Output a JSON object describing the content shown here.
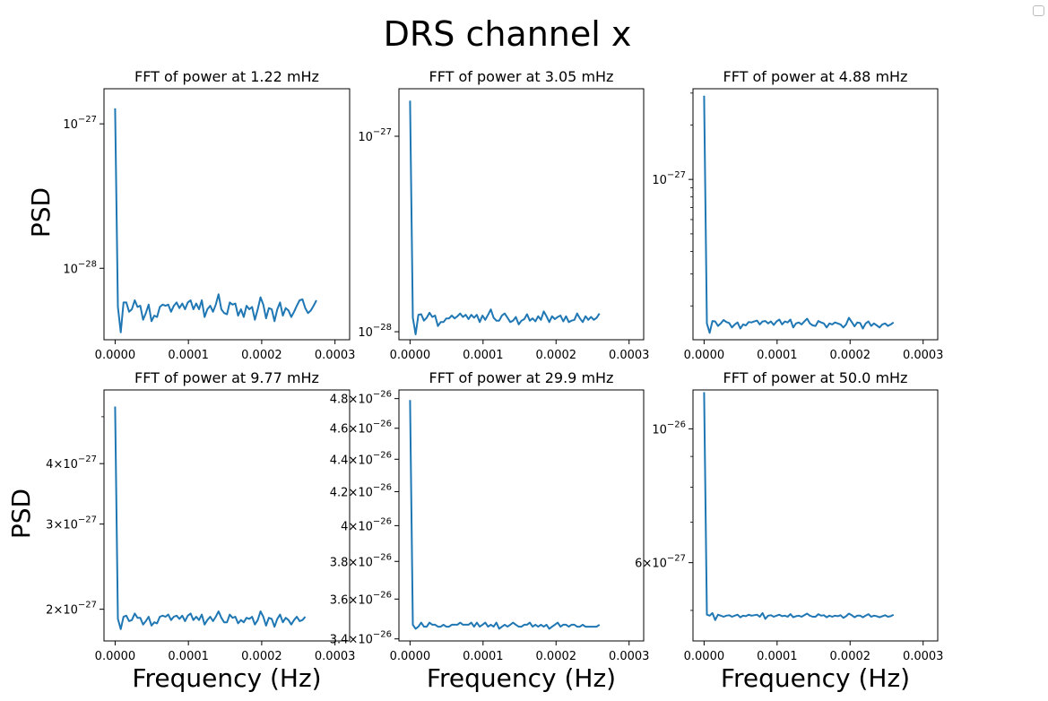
{
  "figure_title": "DRS channel x",
  "line_color": "#1f77b4",
  "chart_data": [
    {
      "type": "line",
      "title": "FFT of power at 1.22 mHz",
      "xlabel": "",
      "ylabel": "PSD",
      "xscale": "linear",
      "yscale": "log",
      "xlim": [
        -1.52e-05,
        0.00032
      ],
      "ylim": [
        3.2e-29,
        1.75e-27
      ],
      "xticks": [
        "0.0000",
        "0.0001",
        "0.0002",
        "0.0003"
      ],
      "yticks": [
        {
          "value": 1e-27,
          "mant": "10",
          "exp": "−27"
        },
        {
          "value": 1e-28,
          "mant": "10",
          "exp": "−28"
        }
      ],
      "x_step": 3.815e-06,
      "values": [
        1.28e-27,
        5.4e-29,
        3.6e-29,
        5.8e-29,
        5.8e-29,
        5e-29,
        5.2e-29,
        6e-29,
        5.4e-29,
        5.5e-29,
        4.4e-29,
        4.9e-29,
        5.6e-29,
        4.3e-29,
        4.7e-29,
        4.6e-29,
        5.4e-29,
        5.6e-29,
        5.5e-29,
        5.6e-29,
        5e-29,
        5.5e-29,
        5.8e-29,
        5.3e-29,
        5.7e-29,
        5.2e-29,
        5.8e-29,
        6e-29,
        5.2e-29,
        5.7e-29,
        5.2e-29,
        6e-29,
        4.6e-29,
        5.2e-29,
        5.5e-29,
        5e-29,
        5.6e-29,
        6.6e-29,
        5.2e-29,
        4.9e-29,
        4.8e-29,
        5.8e-29,
        5.6e-29,
        5.7e-29,
        4.7e-29,
        5.2e-29,
        4.6e-29,
        5.5e-29,
        5.2e-29,
        5.4e-29,
        4.4e-29,
        5.2e-29,
        6.3e-29,
        5.6e-29,
        4.5e-29,
        5.3e-29,
        5.2e-29,
        4.3e-29,
        5.2e-29,
        5.8e-29,
        4.7e-29,
        5.3e-29,
        5.1e-29,
        4.6e-29,
        5e-29,
        5.5e-29,
        6e-29,
        6.1e-29,
        5.3e-29,
        4.9e-29,
        5.1e-29,
        5.5e-29,
        6e-29
      ]
    },
    {
      "type": "line",
      "title": "FFT of power at 3.05 mHz",
      "xlabel": "",
      "ylabel": "",
      "xscale": "linear",
      "yscale": "log",
      "xlim": [
        -1.52e-05,
        0.00032
      ],
      "ylim": [
        9.1e-29,
        1.75e-27
      ],
      "xticks": [
        "0.0000",
        "0.0001",
        "0.0002",
        "0.0003"
      ],
      "yticks": [
        {
          "value": 1e-27,
          "mant": "10",
          "exp": "−27"
        },
        {
          "value": 1e-28,
          "mant": "10",
          "exp": "−28"
        }
      ],
      "x_step": 3.815e-06,
      "values": [
        1.52e-27,
        1.18e-28,
        9.7e-29,
        1.22e-28,
        1.23e-28,
        1.14e-28,
        1.18e-28,
        1.25e-28,
        1.19e-28,
        1.21e-28,
        1.07e-28,
        1.12e-28,
        1.12e-28,
        1.17e-28,
        1.17e-28,
        1.21e-28,
        1.17e-28,
        1.2e-28,
        1.24e-28,
        1.19e-28,
        1.22e-28,
        1.16e-28,
        1.22e-28,
        1.18e-28,
        1.22e-28,
        1.12e-28,
        1.21e-28,
        1.15e-28,
        1.22e-28,
        1.3e-28,
        1.18e-28,
        1.14e-28,
        1.14e-28,
        1.21e-28,
        1.24e-28,
        1.18e-28,
        1.12e-28,
        1.14e-28,
        1.19e-28,
        1.09e-28,
        1.14e-28,
        1.16e-28,
        1.23e-28,
        1.14e-28,
        1.17e-28,
        1.13e-28,
        1.2e-28,
        1.15e-28,
        1.27e-28,
        1.2e-28,
        1.12e-28,
        1.2e-28,
        1.16e-28,
        1.19e-28,
        1.21e-28,
        1.13e-28,
        1.2e-28,
        1.12e-28,
        1.14e-28,
        1.15e-28,
        1.24e-28,
        1.17e-28,
        1.12e-28,
        1.2e-28,
        1.15e-28,
        1.19e-28,
        1.15e-28,
        1.18e-28,
        1.24e-28
      ]
    },
    {
      "type": "line",
      "title": "FFT of power at 4.88 mHz",
      "xlabel": "",
      "ylabel": "",
      "xscale": "linear",
      "yscale": "log",
      "xlim": [
        -1.52e-05,
        0.00032
      ],
      "ylim": [
        1.3e-28,
        3.17e-27
      ],
      "xticks": [
        "0.0000",
        "0.0001",
        "0.0002",
        "0.0003"
      ],
      "yticks": [
        {
          "value": 1e-27,
          "mant": "10",
          "exp": "−27"
        }
      ],
      "minor_yticks": [
        3e-28,
        4e-28,
        5e-28,
        6e-28,
        7e-28,
        8e-28,
        9e-28,
        2e-27,
        3e-27,
        2e-28
      ],
      "x_step": 3.815e-06,
      "values": [
        2.9e-27,
        1.6e-28,
        1.42e-28,
        1.65e-28,
        1.64e-28,
        1.55e-28,
        1.6e-28,
        1.67e-28,
        1.63e-28,
        1.61e-28,
        1.52e-28,
        1.58e-28,
        1.62e-28,
        1.5e-28,
        1.58e-28,
        1.56e-28,
        1.63e-28,
        1.62e-28,
        1.64e-28,
        1.66e-28,
        1.58e-28,
        1.64e-28,
        1.65e-28,
        1.6e-28,
        1.64e-28,
        1.57e-28,
        1.64e-28,
        1.68e-28,
        1.58e-28,
        1.64e-28,
        1.62e-28,
        1.68e-28,
        1.52e-28,
        1.6e-28,
        1.62e-28,
        1.58e-28,
        1.64e-28,
        1.7e-28,
        1.6e-28,
        1.56e-28,
        1.55e-28,
        1.65e-28,
        1.62e-28,
        1.6e-28,
        1.52e-28,
        1.6e-28,
        1.58e-28,
        1.62e-28,
        1.6e-28,
        1.58e-28,
        1.52e-28,
        1.58e-28,
        1.72e-28,
        1.63e-28,
        1.54e-28,
        1.62e-28,
        1.61e-28,
        1.5e-28,
        1.6e-28,
        1.64e-28,
        1.55e-28,
        1.6e-28,
        1.56e-28,
        1.52e-28,
        1.58e-28,
        1.6e-28,
        1.55e-28,
        1.58e-28,
        1.62e-28
      ]
    },
    {
      "type": "line",
      "title": "FFT of power at 9.77 mHz",
      "xlabel": "Frequency (Hz)",
      "ylabel": "PSD",
      "xscale": "linear",
      "yscale": "log",
      "xlim": [
        -1.52e-05,
        0.00032
      ],
      "ylim": [
        1.72e-27,
        5.68e-27
      ],
      "xticks": [
        "0.0000",
        "0.0001",
        "0.0002",
        "0.0003"
      ],
      "yticks": [
        {
          "value": 4e-27,
          "mant": "4×10",
          "exp": "−27"
        },
        {
          "value": 3e-27,
          "mant": "3×10",
          "exp": "−27"
        },
        {
          "value": 2e-27,
          "mant": "2×10",
          "exp": "−27"
        }
      ],
      "minor_yticks": [
        5e-27
      ],
      "x_step": 3.815e-06,
      "values": [
        5.25e-27,
        1.91e-27,
        1.82e-27,
        1.93e-27,
        1.94e-27,
        1.89e-27,
        1.9e-27,
        1.96e-27,
        1.92e-27,
        1.92e-27,
        1.86e-27,
        1.89e-27,
        1.93e-27,
        1.85e-27,
        1.88e-27,
        1.87e-27,
        1.93e-27,
        1.94e-27,
        1.93e-27,
        1.95e-27,
        1.9e-27,
        1.93e-27,
        1.94e-27,
        1.91e-27,
        1.94e-27,
        1.89e-27,
        1.94e-27,
        1.96e-27,
        1.9e-27,
        1.93e-27,
        1.9e-27,
        1.95e-27,
        1.86e-27,
        1.9e-27,
        1.93e-27,
        1.89e-27,
        1.93e-27,
        1.98e-27,
        1.92e-27,
        1.88e-27,
        1.88e-27,
        1.95e-27,
        1.92e-27,
        1.93e-27,
        1.87e-27,
        1.9e-27,
        1.88e-27,
        1.92e-27,
        1.91e-27,
        1.93e-27,
        1.86e-27,
        1.9e-27,
        1.98e-27,
        1.93e-27,
        1.85e-27,
        1.92e-27,
        1.91e-27,
        1.84e-27,
        1.91e-27,
        1.95e-27,
        1.88e-27,
        1.92e-27,
        1.9e-27,
        1.86e-27,
        1.9e-27,
        1.93e-27,
        1.89e-27,
        1.9e-27,
        1.93e-27
      ]
    },
    {
      "type": "line",
      "title": "FFT of power at 29.9 mHz",
      "xlabel": "Frequency (Hz)",
      "ylabel": "",
      "xscale": "log",
      "yscale": "log",
      "xlim": [
        -1.52e-05,
        0.00032
      ],
      "ylim": [
        3.39e-26,
        4.86e-26
      ],
      "xticks": [
        "0.0000",
        "0.0001",
        "0.0002",
        "0.0003"
      ],
      "yticks": [
        {
          "value": 4.8e-26,
          "mant": "4.8×10",
          "exp": "−26"
        },
        {
          "value": 4.6e-26,
          "mant": "4.6×10",
          "exp": "−26"
        },
        {
          "value": 4.4e-26,
          "mant": "4.4×10",
          "exp": "−26"
        },
        {
          "value": 4.2e-26,
          "mant": "4.2×10",
          "exp": "−26"
        },
        {
          "value": 4e-26,
          "mant": "4×10",
          "exp": "−26"
        },
        {
          "value": 3.8e-26,
          "mant": "3.8×10",
          "exp": "−26"
        },
        {
          "value": 3.6e-26,
          "mant": "3.6×10",
          "exp": "−26"
        },
        {
          "value": 3.4e-26,
          "mant": "3.4×10",
          "exp": "−26"
        }
      ],
      "x_step": 3.815e-06,
      "values": [
        4.79e-26,
        3.47e-26,
        3.45e-26,
        3.46e-26,
        3.48e-26,
        3.46e-26,
        3.46e-26,
        3.48e-26,
        3.47e-26,
        3.47e-26,
        3.46e-26,
        3.46e-26,
        3.47e-26,
        3.46e-26,
        3.46e-26,
        3.47e-26,
        3.47e-26,
        3.47e-26,
        3.48e-26,
        3.47e-26,
        3.47e-26,
        3.47e-26,
        3.48e-26,
        3.46e-26,
        3.48e-26,
        3.46e-26,
        3.47e-26,
        3.48e-26,
        3.46e-26,
        3.47e-26,
        3.46e-26,
        3.48e-26,
        3.45e-26,
        3.46e-26,
        3.47e-26,
        3.46e-26,
        3.47e-26,
        3.48e-26,
        3.47e-26,
        3.46e-26,
        3.46e-26,
        3.47e-26,
        3.47e-26,
        3.48e-26,
        3.46e-26,
        3.47e-26,
        3.46e-26,
        3.47e-26,
        3.46e-26,
        3.47e-26,
        3.45e-26,
        3.46e-26,
        3.47e-26,
        3.48e-26,
        3.46e-26,
        3.47e-26,
        3.47e-26,
        3.46e-26,
        3.47e-26,
        3.47e-26,
        3.46e-26,
        3.46e-26,
        3.47e-26,
        3.46e-26,
        3.46e-26,
        3.46e-26,
        3.46e-26,
        3.46e-26,
        3.47e-26
      ]
    },
    {
      "type": "line",
      "title": "FFT of power at 50.0 mHz",
      "xlabel": "Frequency (Hz)",
      "ylabel": "",
      "xscale": "linear",
      "yscale": "log",
      "xlim": [
        -1.52e-05,
        0.00032
      ],
      "ylim": [
        4.45e-27,
        1.16e-26
      ],
      "xticks": [
        "0.0000",
        "0.0001",
        "0.0002",
        "0.0003"
      ],
      "yticks": [
        {
          "value": 1e-26,
          "mant": "10",
          "exp": "−26"
        },
        {
          "value": 6e-27,
          "mant": "6×10",
          "exp": "−27"
        }
      ],
      "minor_yticks": [
        7e-27,
        8e-27,
        9e-27,
        5e-27
      ],
      "x_step": 3.815e-06,
      "values": [
        1.15e-26,
        4.92e-27,
        4.9e-27,
        4.95e-27,
        4.82e-27,
        4.92e-27,
        4.9e-27,
        4.88e-27,
        4.9e-27,
        4.91e-27,
        4.88e-27,
        4.9e-27,
        4.92e-27,
        4.87e-27,
        4.9e-27,
        4.89e-27,
        4.92e-27,
        4.9e-27,
        4.91e-27,
        4.92e-27,
        4.88e-27,
        4.95e-27,
        4.84e-27,
        4.9e-27,
        4.91e-27,
        4.88e-27,
        4.9e-27,
        4.92e-27,
        4.89e-27,
        4.9e-27,
        4.88e-27,
        4.93e-27,
        4.87e-27,
        4.89e-27,
        4.9e-27,
        4.88e-27,
        4.91e-27,
        4.94e-27,
        4.9e-27,
        4.88e-27,
        4.88e-27,
        4.93e-27,
        4.9e-27,
        4.91e-27,
        4.87e-27,
        4.9e-27,
        4.88e-27,
        4.9e-27,
        4.89e-27,
        4.91e-27,
        4.86e-27,
        4.89e-27,
        4.94e-27,
        4.91e-27,
        4.87e-27,
        4.9e-27,
        4.9e-27,
        4.87e-27,
        4.9e-27,
        4.93e-27,
        4.88e-27,
        4.9e-27,
        4.89e-27,
        4.87e-27,
        4.89e-27,
        4.91e-27,
        4.88e-27,
        4.89e-27,
        4.92e-27
      ]
    }
  ]
}
